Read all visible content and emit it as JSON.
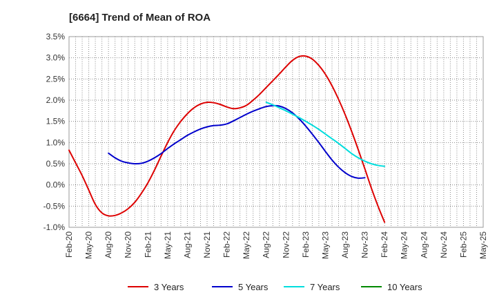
{
  "chart_data": {
    "type": "line",
    "title": "[6664]  Trend of Mean of ROA",
    "xlabel": "",
    "ylabel": "",
    "x_ticks": [
      "Feb-20",
      "May-20",
      "Aug-20",
      "Nov-20",
      "Feb-21",
      "May-21",
      "Aug-21",
      "Nov-21",
      "Feb-22",
      "May-22",
      "Aug-22",
      "Nov-22",
      "Feb-23",
      "May-23",
      "Aug-23",
      "Nov-23",
      "Feb-24",
      "May-24",
      "Aug-24",
      "Nov-24",
      "Feb-25",
      "May-25"
    ],
    "y_ticks": [
      "3.5%",
      "3.0%",
      "2.5%",
      "2.0%",
      "1.5%",
      "1.0%",
      "0.5%",
      "0.0%",
      "-0.5%",
      "-1.0%"
    ],
    "ylim": [
      -1.0,
      3.5
    ],
    "grid": true,
    "legend_position": "bottom",
    "series": [
      {
        "name": "3 Years",
        "color": "#dd0000",
        "points": [
          [
            0,
            0.82
          ],
          [
            1,
            0.52
          ],
          [
            2,
            0.22
          ],
          [
            3,
            -0.12
          ],
          [
            4,
            -0.46
          ],
          [
            5,
            -0.66
          ],
          [
            6,
            -0.73
          ],
          [
            7,
            -0.72
          ],
          [
            8,
            -0.66
          ],
          [
            9,
            -0.56
          ],
          [
            10,
            -0.41
          ],
          [
            11,
            -0.2
          ],
          [
            12,
            0.05
          ],
          [
            13,
            0.35
          ],
          [
            14,
            0.68
          ],
          [
            15,
            1.0
          ],
          [
            16,
            1.28
          ],
          [
            17,
            1.5
          ],
          [
            18,
            1.68
          ],
          [
            19,
            1.82
          ],
          [
            20,
            1.91
          ],
          [
            21,
            1.95
          ],
          [
            22,
            1.94
          ],
          [
            23,
            1.9
          ],
          [
            24,
            1.84
          ],
          [
            25,
            1.8
          ],
          [
            26,
            1.82
          ],
          [
            27,
            1.88
          ],
          [
            28,
            2.0
          ],
          [
            29,
            2.14
          ],
          [
            30,
            2.3
          ],
          [
            31,
            2.46
          ],
          [
            32,
            2.62
          ],
          [
            33,
            2.79
          ],
          [
            34,
            2.94
          ],
          [
            35,
            3.03
          ],
          [
            36,
            3.04
          ],
          [
            37,
            2.97
          ],
          [
            38,
            2.82
          ],
          [
            39,
            2.61
          ],
          [
            40,
            2.34
          ],
          [
            41,
            2.02
          ],
          [
            42,
            1.66
          ],
          [
            43,
            1.26
          ],
          [
            44,
            0.83
          ],
          [
            45,
            0.38
          ],
          [
            46,
            -0.08
          ],
          [
            47,
            -0.5
          ],
          [
            48,
            -0.88
          ]
        ]
      },
      {
        "name": "5 Years",
        "color": "#0000cc",
        "points": [
          [
            6,
            0.75
          ],
          [
            7,
            0.64
          ],
          [
            8,
            0.56
          ],
          [
            9,
            0.52
          ],
          [
            10,
            0.5
          ],
          [
            11,
            0.51
          ],
          [
            12,
            0.56
          ],
          [
            13,
            0.64
          ],
          [
            14,
            0.74
          ],
          [
            15,
            0.86
          ],
          [
            16,
            0.97
          ],
          [
            17,
            1.07
          ],
          [
            18,
            1.17
          ],
          [
            19,
            1.25
          ],
          [
            20,
            1.32
          ],
          [
            21,
            1.37
          ],
          [
            22,
            1.4
          ],
          [
            23,
            1.41
          ],
          [
            24,
            1.44
          ],
          [
            25,
            1.51
          ],
          [
            26,
            1.59
          ],
          [
            27,
            1.67
          ],
          [
            28,
            1.74
          ],
          [
            29,
            1.8
          ],
          [
            30,
            1.85
          ],
          [
            31,
            1.87
          ],
          [
            32,
            1.86
          ],
          [
            33,
            1.8
          ],
          [
            34,
            1.7
          ],
          [
            35,
            1.56
          ],
          [
            36,
            1.39
          ],
          [
            37,
            1.2
          ],
          [
            38,
            1.0
          ],
          [
            39,
            0.79
          ],
          [
            40,
            0.59
          ],
          [
            41,
            0.42
          ],
          [
            42,
            0.29
          ],
          [
            43,
            0.2
          ],
          [
            44,
            0.16
          ],
          [
            45,
            0.17
          ]
        ]
      },
      {
        "name": "7 Years",
        "color": "#00dddd",
        "points": [
          [
            30,
            1.95
          ],
          [
            31,
            1.89
          ],
          [
            32,
            1.82
          ],
          [
            33,
            1.75
          ],
          [
            34,
            1.67
          ],
          [
            35,
            1.59
          ],
          [
            36,
            1.5
          ],
          [
            37,
            1.41
          ],
          [
            38,
            1.31
          ],
          [
            39,
            1.2
          ],
          [
            40,
            1.09
          ],
          [
            41,
            0.98
          ],
          [
            42,
            0.86
          ],
          [
            43,
            0.74
          ],
          [
            44,
            0.64
          ],
          [
            45,
            0.56
          ],
          [
            46,
            0.5
          ],
          [
            47,
            0.46
          ],
          [
            48,
            0.44
          ]
        ]
      },
      {
        "name": "10 Years",
        "color": "#008800",
        "points": []
      }
    ]
  }
}
